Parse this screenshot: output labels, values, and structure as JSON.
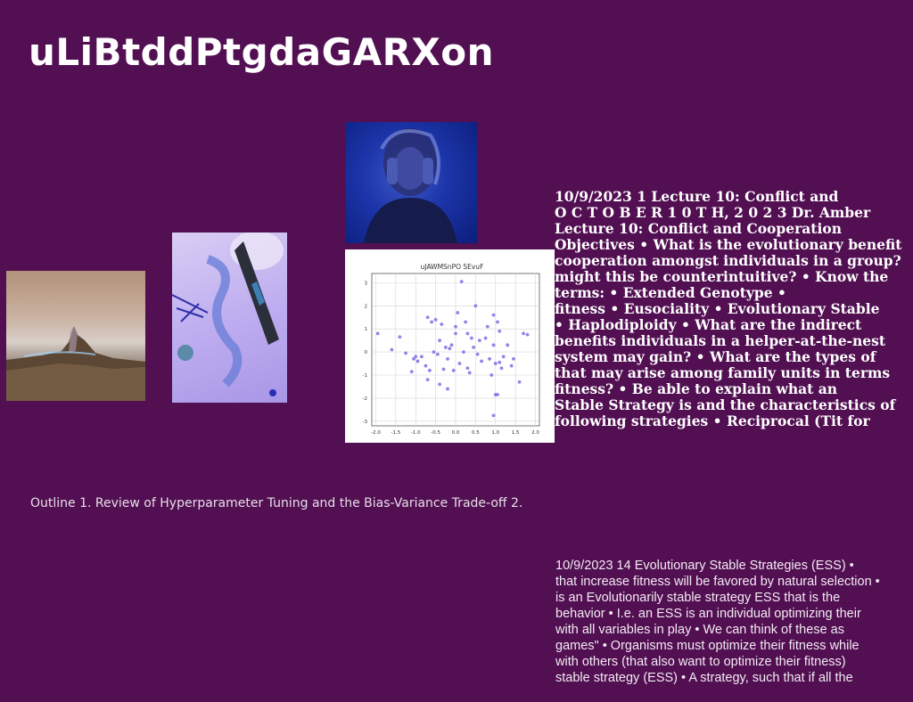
{
  "title": "uLiBtddPtgdaGARXon",
  "images": {
    "mountain": "mountain-photo",
    "party": "party-decoration-photo",
    "person": "person-blue-light-photo"
  },
  "chart_data": {
    "type": "scatter",
    "title": "uJAWMSnPO SEvuF",
    "xlabel": "",
    "ylabel": "",
    "xlim": [
      -2.1,
      2.1
    ],
    "ylim": [
      -3.2,
      3.4
    ],
    "xticks": [
      "-2.0",
      "-1.5",
      "-1.0",
      "-0.5",
      "0.0",
      "0.5",
      "1.0",
      "1.5",
      "2.0"
    ],
    "yticks": [
      "-3",
      "-2",
      "-1",
      "0",
      "1",
      "2",
      "3"
    ],
    "xtick_values": [
      -2.0,
      -1.5,
      -1.0,
      -0.5,
      0.0,
      0.5,
      1.0,
      1.5,
      2.0
    ],
    "ytick_values": [
      -3,
      -2,
      -1,
      0,
      1,
      2,
      3
    ],
    "grid": true,
    "color": "#7b6ee6",
    "points": [
      [
        -1.95,
        0.8
      ],
      [
        -1.6,
        0.1
      ],
      [
        -1.4,
        0.65
      ],
      [
        -1.25,
        -0.05
      ],
      [
        -1.1,
        -0.85
      ],
      [
        -1.05,
        -0.3
      ],
      [
        -1.0,
        -0.2
      ],
      [
        -0.95,
        -0.4
      ],
      [
        -0.85,
        -0.2
      ],
      [
        -0.75,
        -0.6
      ],
      [
        -0.7,
        -1.2
      ],
      [
        -0.7,
        1.5
      ],
      [
        -0.65,
        -0.8
      ],
      [
        -0.6,
        1.3
      ],
      [
        -0.55,
        0.0
      ],
      [
        -0.5,
        1.4
      ],
      [
        -0.45,
        -0.1
      ],
      [
        -0.4,
        0.5
      ],
      [
        -0.4,
        -1.4
      ],
      [
        -0.35,
        1.2
      ],
      [
        -0.3,
        -0.75
      ],
      [
        -0.25,
        0.2
      ],
      [
        -0.2,
        -1.6
      ],
      [
        -0.2,
        -0.3
      ],
      [
        -0.15,
        0.15
      ],
      [
        -0.1,
        0.3
      ],
      [
        -0.05,
        -0.8
      ],
      [
        0.0,
        1.1
      ],
      [
        0.0,
        0.8
      ],
      [
        0.05,
        1.7
      ],
      [
        0.1,
        -0.5
      ],
      [
        0.15,
        3.05
      ],
      [
        0.2,
        0.0
      ],
      [
        0.25,
        1.3
      ],
      [
        0.3,
        -0.7
      ],
      [
        0.3,
        0.8
      ],
      [
        0.35,
        -0.9
      ],
      [
        0.4,
        0.6
      ],
      [
        0.45,
        0.2
      ],
      [
        0.5,
        2.0
      ],
      [
        0.55,
        -0.1
      ],
      [
        0.6,
        0.5
      ],
      [
        0.65,
        -0.4
      ],
      [
        0.75,
        0.6
      ],
      [
        0.8,
        1.1
      ],
      [
        0.85,
        -0.3
      ],
      [
        0.9,
        -1.0
      ],
      [
        0.95,
        0.3
      ],
      [
        0.95,
        1.6
      ],
      [
        1.0,
        -0.5
      ],
      [
        1.0,
        -1.85
      ],
      [
        1.05,
        1.3
      ],
      [
        1.1,
        0.9
      ],
      [
        1.1,
        -0.45
      ],
      [
        1.15,
        -0.7
      ],
      [
        1.2,
        -0.2
      ],
      [
        1.3,
        0.3
      ],
      [
        1.4,
        -0.6
      ],
      [
        1.45,
        -0.3
      ],
      [
        1.6,
        -1.3
      ],
      [
        1.7,
        0.8
      ],
      [
        1.8,
        0.75
      ],
      [
        0.95,
        -2.75
      ],
      [
        1.05,
        -1.85
      ]
    ]
  },
  "text_block_1": [
    "10/9/2023 1 Lecture 10: Conflict and",
    "O C T O B E R 1 0 T H, 2 0 2 3 Dr. Amber",
    "Lecture 10: Conflict and Cooperation",
    "Objectives • What is the evolutionary benefit",
    "cooperation amongst individuals in a group?",
    "might this be counterintuitive? • Know the",
    "terms: • Extended Genotype •",
    "fitness • Eusociality • Evolutionary Stable",
    "• Haplodiploidy • What are the indirect",
    "benefits individuals in a helper-at-the-nest",
    "system may gain? • What are the types of",
    "that may arise among family units in terms",
    "fitness? • Be able to explain what an",
    "Stable Strategy is and the characteristics of",
    "following strategies • Reciprocal (Tit for"
  ],
  "outline_text": "Outline 1. Review of Hyperparameter Tuning and the Bias-Variance Trade-off 2.",
  "text_block_2": [
    "10/9/2023 14 Evolutionary Stable Strategies (ESS) •",
    "that increase fitness will be favored by natural selection •",
    "is an Evolutionarily stable strategy ESS that is the",
    "behavior • I.e. an ESS is an individual optimizing their",
    "with all variables in play • We can think of these as",
    "games\" • Organisms must optimize their fitness while",
    "with others (that also want to optimize their fitness)",
    "stable strategy (ESS) • A strategy, such that if all the"
  ]
}
